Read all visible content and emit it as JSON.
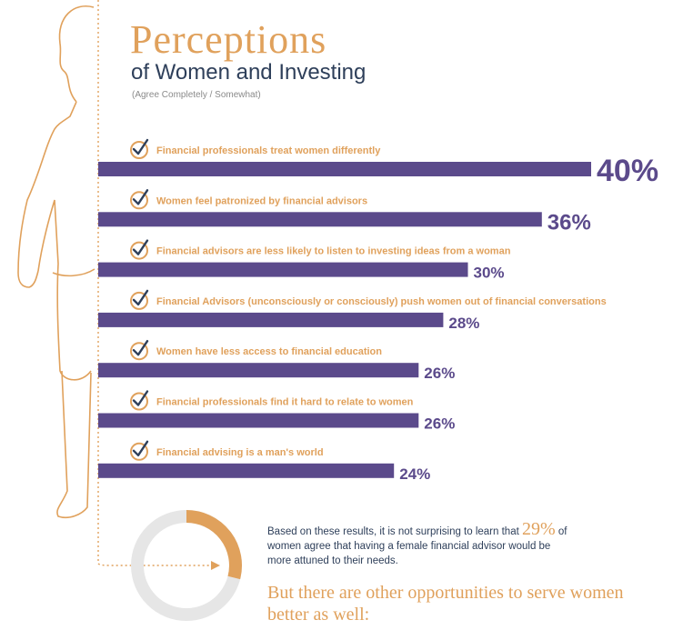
{
  "header": {
    "title": "Perceptions",
    "subtitle": "of Women and Investing",
    "note": "(Agree Completely / Somewhat)"
  },
  "chart_data": {
    "type": "bar",
    "orientation": "horizontal",
    "categories": [
      "Financial  professionals treat women differently",
      "Women feel patronized by financial advisors",
      "Financial advisors are less likely to listen to investing ideas from a woman",
      "Financial Advisors (unconsciously or consciously) push women out of financial conversations",
      "Women have less access to financial education",
      "Financial professionals find it hard to relate to women",
      "Financial advising is a man's world"
    ],
    "values": [
      40,
      36,
      30,
      28,
      26,
      26,
      24
    ],
    "value_labels": [
      "40%",
      "36%",
      "30%",
      "28%",
      "26%",
      "26%",
      "24%"
    ],
    "unit": "%",
    "xlim": [
      0,
      45
    ],
    "grid": false,
    "legend": "none"
  },
  "donut": {
    "value": 29,
    "label": "29%"
  },
  "conclusion": {
    "text_before": "Based on these results, it is not surprising to learn that",
    "stat": "29%",
    "text_after": "of women agree that having a female financial advisor would be more attuned to their needs."
  },
  "closing": "But there are other opportunities to serve women better as well:",
  "colors": {
    "bar": "#5b4a8b",
    "accent": "#e0a15c",
    "navy": "#2e3f5a",
    "track": "#e6e6e6"
  }
}
